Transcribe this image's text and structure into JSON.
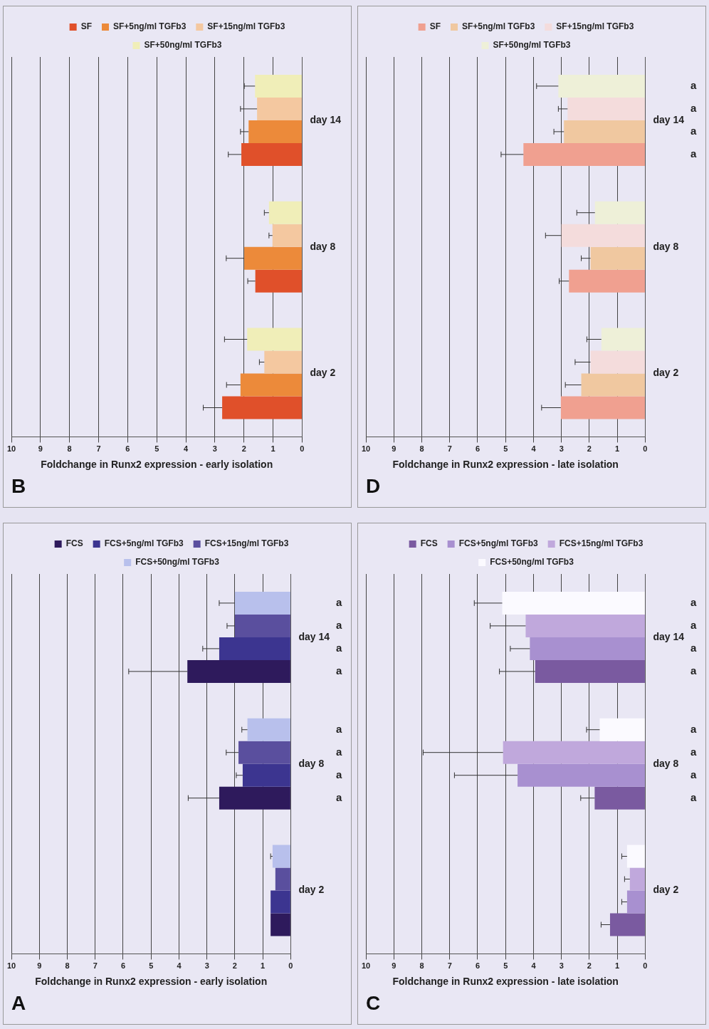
{
  "chart_data": [
    {
      "type": "bar",
      "orientation": "horizontal",
      "title": "A",
      "xlabel": "Foldchange in Runx2 expression - early isolation",
      "categories": [
        "day 14",
        "day 8",
        "day 2"
      ],
      "xlim": [
        10,
        0
      ],
      "xticks": [
        0,
        1,
        2,
        3,
        4,
        5,
        6,
        7,
        8,
        9,
        10
      ],
      "grid": "x",
      "legend": "top",
      "series": [
        {
          "name": "FCS",
          "color": "#2e1a5c",
          "values": [
            3.7,
            2.56,
            0.72
          ],
          "errors": [
            [
              3.7,
              5.8
            ],
            [
              2.56,
              3.67
            ],
            null
          ]
        },
        {
          "name": "FCS+5ng/ml TGFb3",
          "color": "#3c3590",
          "values": [
            2.56,
            1.72,
            0.72
          ],
          "errors": [
            [
              2.56,
              3.15
            ],
            [
              1.72,
              1.95
            ],
            null
          ]
        },
        {
          "name": "FCS+15ng/ml TGFb3",
          "color": "#5a4f9e",
          "values": [
            2.0,
            1.87,
            0.55
          ],
          "errors": [
            [
              2.0,
              2.28
            ],
            [
              1.87,
              2.31
            ],
            null
          ]
        },
        {
          "name": "FCS+50ng/ml TGFb3",
          "color": "#b8c0ec",
          "values": [
            2.0,
            1.55,
            0.65
          ],
          "errors": [
            [
              2.0,
              2.56
            ],
            [
              1.55,
              1.75
            ],
            [
              0.65,
              0.72
            ]
          ]
        }
      ],
      "annotations": [
        "a",
        "a",
        "a",
        "a",
        "a",
        "a",
        "a",
        "a"
      ]
    },
    {
      "type": "bar",
      "orientation": "horizontal",
      "title": "B",
      "xlabel": "Foldchange in Runx2 expression - early isolation",
      "categories": [
        "day 14",
        "day 8",
        "day 2"
      ],
      "xlim": [
        10,
        0
      ],
      "xticks": [
        0,
        1,
        2,
        3,
        4,
        5,
        6,
        7,
        8,
        9,
        10
      ],
      "grid": "x",
      "legend": "top",
      "series": [
        {
          "name": "SF",
          "color": "#e0502a",
          "values": [
            2.09,
            1.61,
            2.75
          ],
          "errors": [
            [
              2.09,
              2.54
            ],
            [
              1.61,
              1.87
            ],
            [
              2.75,
              3.4
            ]
          ]
        },
        {
          "name": "SF+5ng/ml TGFb3",
          "color": "#ec8a3a",
          "values": [
            1.84,
            1.99,
            2.12
          ],
          "errors": [
            [
              1.84,
              2.12
            ],
            [
              1.99,
              2.61
            ],
            [
              2.12,
              2.6
            ]
          ]
        },
        {
          "name": "SF+15ng/ml TGFb3",
          "color": "#f4c8a0",
          "values": [
            1.55,
            1.02,
            1.3
          ],
          "errors": [
            [
              1.55,
              2.12
            ],
            [
              1.02,
              1.14
            ],
            [
              1.3,
              1.47
            ]
          ]
        },
        {
          "name": "SF+50ng/ml TGFb3",
          "color": "#f0eeb8",
          "values": [
            1.62,
            1.14,
            1.89
          ],
          "errors": [
            [
              1.62,
              1.99
            ],
            [
              1.14,
              1.3
            ],
            [
              1.89,
              2.67
            ]
          ]
        }
      ]
    },
    {
      "type": "bar",
      "orientation": "horizontal",
      "title": "C",
      "xlabel": "Foldchange in Runx2 expression - late isolation",
      "categories": [
        "day 14",
        "day 8",
        "day 2"
      ],
      "xlim": [
        10,
        0
      ],
      "xticks": [
        0,
        1,
        2,
        3,
        4,
        5,
        6,
        7,
        8,
        9,
        10
      ],
      "grid": "x",
      "legend": "top",
      "series": [
        {
          "name": "FCS",
          "color": "#7a5aa0",
          "values": [
            3.94,
            1.81,
            1.26
          ],
          "errors": [
            [
              3.94,
              5.22
            ],
            [
              1.81,
              2.31
            ],
            [
              1.26,
              1.58
            ]
          ]
        },
        {
          "name": "FCS+5ng/ml TGFb3",
          "color": "#a890d0",
          "values": [
            4.13,
            4.57,
            0.65
          ],
          "errors": [
            [
              4.13,
              4.83
            ],
            [
              4.57,
              6.83
            ],
            [
              0.65,
              0.84
            ]
          ]
        },
        {
          "name": "FCS+15ng/ml TGFb3",
          "color": "#c0a8dc",
          "values": [
            4.28,
            5.09,
            0.55
          ],
          "errors": [
            [
              4.28,
              5.55
            ],
            [
              5.09,
              7.95
            ],
            [
              0.55,
              0.74
            ]
          ]
        },
        {
          "name": "FCS+50ng/ml TGFb3",
          "color": "#fbfaff",
          "values": [
            5.12,
            1.63,
            0.65
          ],
          "errors": [
            [
              5.12,
              6.12
            ],
            [
              1.63,
              2.1
            ],
            [
              0.65,
              0.84
            ]
          ]
        }
      ],
      "annotations": [
        "a",
        "a",
        "a",
        "a",
        "a",
        "a",
        "a",
        "a"
      ]
    },
    {
      "type": "bar",
      "orientation": "horizontal",
      "title": "D",
      "xlabel": "Foldchange in Runx2 expression - late isolation",
      "categories": [
        "day 14",
        "day 8",
        "day 2"
      ],
      "xlim": [
        10,
        0
      ],
      "xticks": [
        0,
        1,
        2,
        3,
        4,
        5,
        6,
        7,
        8,
        9,
        10
      ],
      "grid": "x",
      "legend": "top",
      "series": [
        {
          "name": "SF",
          "color": "#f0a090",
          "values": [
            4.36,
            2.73,
            3.02
          ],
          "errors": [
            [
              4.36,
              5.16
            ],
            [
              2.73,
              3.08
            ],
            [
              3.02,
              3.71
            ]
          ]
        },
        {
          "name": "SF+5ng/ml TGFb3",
          "color": "#f0c8a0",
          "values": [
            2.91,
            1.96,
            2.29
          ],
          "errors": [
            [
              2.91,
              3.27
            ],
            [
              1.96,
              2.29
            ],
            [
              2.29,
              2.86
            ]
          ]
        },
        {
          "name": "SF+15ng/ml TGFb3",
          "color": "#f4dcdc",
          "values": [
            2.78,
            3.0,
            1.96
          ],
          "errors": [
            [
              2.78,
              3.11
            ],
            [
              3.0,
              3.57
            ],
            [
              1.96,
              2.51
            ]
          ]
        },
        {
          "name": "SF+50ng/ml TGFb3",
          "color": "#eef0d8",
          "values": [
            3.11,
            1.8,
            1.57
          ],
          "errors": [
            [
              3.11,
              3.89
            ],
            [
              1.8,
              2.45
            ],
            [
              1.57,
              2.09
            ]
          ]
        }
      ],
      "annotations": [
        "a",
        "a",
        "a",
        "a"
      ]
    }
  ]
}
